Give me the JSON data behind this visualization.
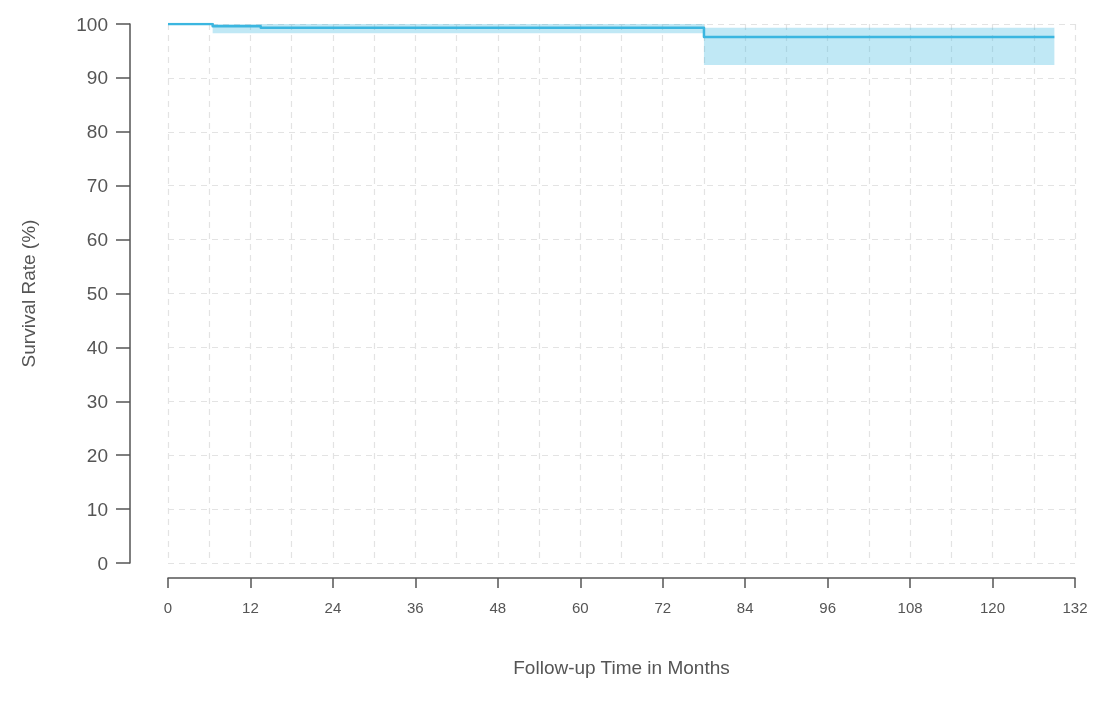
{
  "chart_data": {
    "type": "step",
    "xlabel": "Follow-up Time in Months",
    "ylabel": "Survival Rate (%)",
    "x": [
      0,
      6.5,
      13.5,
      78,
      129
    ],
    "series": [
      {
        "color": "#3bb6e0",
        "values": [
          100,
          99.6,
          99.3,
          97.6,
          97.6
        ],
        "lower": [
          100,
          98.3,
          98.3,
          92.4,
          92.4
        ],
        "upper": [
          100,
          100,
          100,
          99.3,
          99.3
        ]
      }
    ],
    "xlim": [
      0,
      132
    ],
    "xticks": [
      0,
      12,
      24,
      36,
      48,
      60,
      72,
      84,
      96,
      108,
      120,
      132
    ],
    "ylim": [
      0,
      100
    ],
    "yticks": [
      0,
      10,
      20,
      30,
      40,
      50,
      60,
      70,
      80,
      90,
      100
    ],
    "grid": true,
    "line_style": "solid"
  }
}
